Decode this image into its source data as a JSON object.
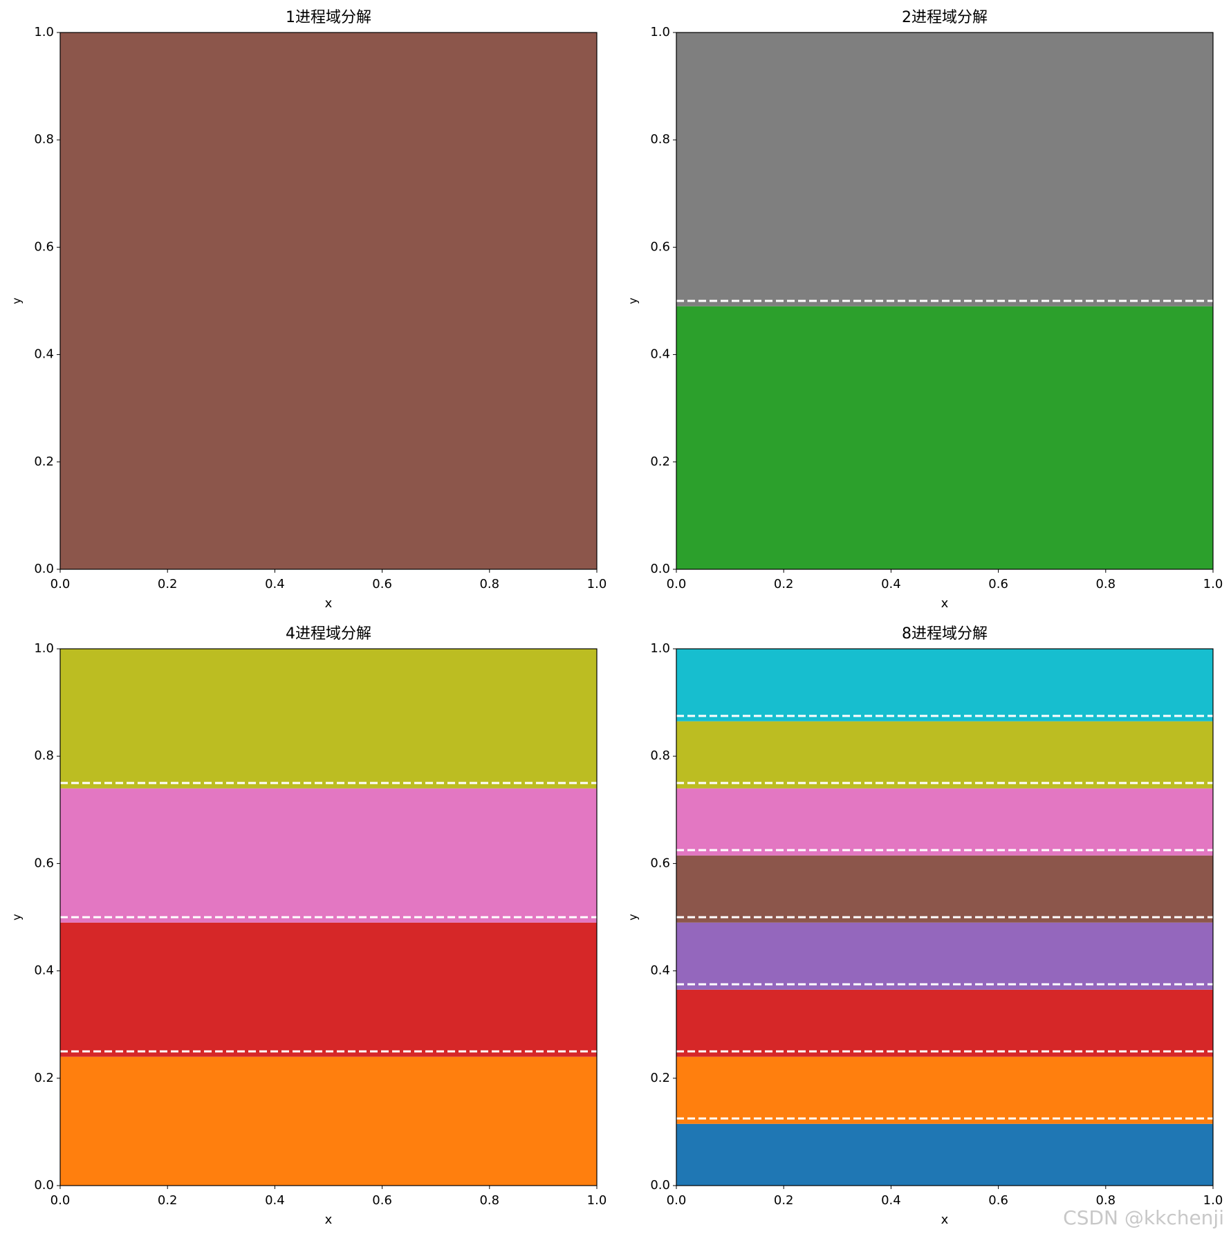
{
  "chart_data": [
    {
      "type": "bands",
      "title": "1进程域分解",
      "x_label": "x",
      "y_label": "y",
      "xlim": [
        0,
        1
      ],
      "ylim": [
        0,
        1
      ],
      "xticks": [
        {
          "value": 0,
          "label": "0.0"
        },
        0.2,
        0.4,
        0.6,
        0.8,
        {
          "value": 1,
          "label": "1.0"
        }
      ],
      "yticks": [
        {
          "value": 0,
          "label": "0.0"
        },
        0.2,
        0.4,
        0.6,
        0.8,
        {
          "value": 1,
          "label": "1.0"
        }
      ],
      "series": [
        {
          "color": "#8c564b",
          "values": [
            0,
            1
          ]
        }
      ]
    },
    {
      "type": "bands",
      "title": "2进程域分解",
      "x_label": "x",
      "y_label": "y",
      "xlim": [
        0,
        1
      ],
      "ylim": [
        0,
        1
      ],
      "xticks": [
        {
          "value": 0,
          "label": "0.0"
        },
        0.2,
        0.4,
        0.6,
        0.8,
        {
          "value": 1,
          "label": "1.0"
        }
      ],
      "yticks": [
        {
          "value": 0,
          "label": "0.0"
        },
        0.2,
        0.4,
        0.6,
        0.8,
        {
          "value": 1,
          "label": "1.0"
        }
      ],
      "series": [
        {
          "color": "#2ca02c",
          "values": [
            0,
            0.49
          ]
        },
        {
          "color": "#7f7f7f",
          "values": [
            0.49,
            1
          ]
        }
      ],
      "hlines": [
        0.5
      ]
    },
    {
      "type": "bands",
      "title": "4进程域分解",
      "x_label": "x",
      "y_label": "y",
      "xlim": [
        0,
        1
      ],
      "ylim": [
        0,
        1
      ],
      "xticks": [
        {
          "value": 0,
          "label": "0.0"
        },
        0.2,
        0.4,
        0.6,
        0.8,
        {
          "value": 1,
          "label": "1.0"
        }
      ],
      "yticks": [
        {
          "value": 0,
          "label": "0.0"
        },
        0.2,
        0.4,
        0.6,
        0.8,
        {
          "value": 1,
          "label": "1.0"
        }
      ],
      "series": [
        {
          "color": "#ff7f0e",
          "values": [
            0,
            0.24
          ]
        },
        {
          "color": "#d62728",
          "values": [
            0.24,
            0.49
          ]
        },
        {
          "color": "#e377c2",
          "values": [
            0.49,
            0.74
          ]
        },
        {
          "color": "#bcbd22",
          "values": [
            0.74,
            1
          ]
        }
      ],
      "hlines": [
        0.25,
        0.5,
        0.75
      ]
    },
    {
      "type": "bands",
      "title": "8进程域分解",
      "x_label": "x",
      "y_label": "y",
      "xlim": [
        0,
        1
      ],
      "ylim": [
        0,
        1
      ],
      "xticks": [
        {
          "value": 0,
          "label": "0.0"
        },
        0.2,
        0.4,
        0.6,
        0.8,
        {
          "value": 1,
          "label": "1.0"
        }
      ],
      "yticks": [
        {
          "value": 0,
          "label": "0.0"
        },
        0.2,
        0.4,
        0.6,
        0.8,
        {
          "value": 1,
          "label": "1.0"
        }
      ],
      "series": [
        {
          "color": "#1f77b4",
          "values": [
            0,
            0.115
          ]
        },
        {
          "color": "#ff7f0e",
          "values": [
            0.115,
            0.24
          ]
        },
        {
          "color": "#d62728",
          "values": [
            0.24,
            0.365
          ]
        },
        {
          "color": "#9467bd",
          "values": [
            0.365,
            0.49
          ]
        },
        {
          "color": "#8c564b",
          "values": [
            0.49,
            0.615
          ]
        },
        {
          "color": "#e377c2",
          "values": [
            0.615,
            0.74
          ]
        },
        {
          "color": "#bcbd22",
          "values": [
            0.74,
            0.865
          ]
        },
        {
          "color": "#17becf",
          "values": [
            0.865,
            1
          ]
        }
      ],
      "hlines": [
        0.125,
        0.25,
        0.375,
        0.5,
        0.625,
        0.75,
        0.875
      ]
    }
  ],
  "watermark": "CSDN @kkchenji"
}
